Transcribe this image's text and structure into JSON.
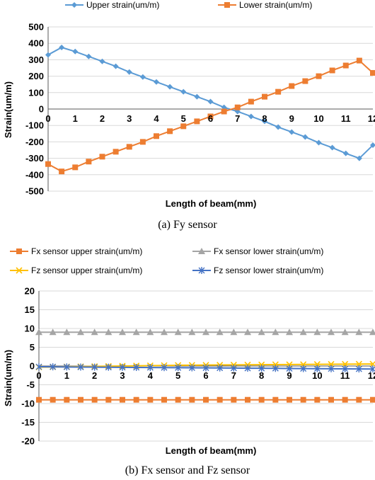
{
  "chart_data": [
    {
      "type": "line",
      "caption": "(a) Fy sensor",
      "xlabel": "Length of beam(mm)",
      "ylabel": "Strain(um/m)",
      "ylim": [
        -500,
        500
      ],
      "yticks": [
        -500,
        -400,
        -300,
        -200,
        -100,
        0,
        100,
        200,
        300,
        400,
        500
      ],
      "xlim": [
        0,
        12
      ],
      "xticks": [
        0,
        1,
        2,
        3,
        4,
        5,
        6,
        7,
        8,
        9,
        10,
        11,
        12
      ],
      "grid": true,
      "legend_position": "top",
      "x": [
        0,
        0.5,
        1,
        1.5,
        2,
        2.5,
        3,
        3.5,
        4,
        4.5,
        5,
        5.5,
        6,
        6.5,
        7,
        7.5,
        8,
        8.5,
        9,
        9.5,
        10,
        10.5,
        11,
        11.5,
        12
      ],
      "series": [
        {
          "name": "Upper strain(um/m)",
          "color": "#5B9BD5",
          "marker": "diamond",
          "values": [
            330,
            375,
            350,
            320,
            290,
            260,
            225,
            195,
            165,
            135,
            105,
            75,
            45,
            10,
            -15,
            -45,
            -75,
            -110,
            -140,
            -170,
            -205,
            -235,
            -270,
            -300,
            -220
          ]
        },
        {
          "name": "Lower strain(um/m)",
          "color": "#ED7D31",
          "marker": "square",
          "values": [
            -335,
            -380,
            -355,
            -320,
            -290,
            -260,
            -230,
            -200,
            -165,
            -135,
            -105,
            -75,
            -45,
            -15,
            10,
            45,
            75,
            105,
            140,
            170,
            200,
            235,
            265,
            295,
            220
          ]
        }
      ]
    },
    {
      "type": "line",
      "caption": "(b) Fx sensor and Fz sensor",
      "xlabel": "Length of beam(mm)",
      "ylabel": "Strain(um/m)",
      "ylim": [
        -20,
        20
      ],
      "yticks": [
        -20,
        -15,
        -10,
        -5,
        0,
        5,
        10,
        15,
        20
      ],
      "xlim": [
        0,
        12
      ],
      "xticks": [
        0,
        1,
        2,
        3,
        4,
        5,
        6,
        7,
        8,
        9,
        10,
        11,
        12
      ],
      "grid": true,
      "legend_position": "top",
      "x": [
        0,
        0.5,
        1,
        1.5,
        2,
        2.5,
        3,
        3.5,
        4,
        4.5,
        5,
        5.5,
        6,
        6.5,
        7,
        7.5,
        8,
        8.5,
        9,
        9.5,
        10,
        10.5,
        11,
        11.5,
        12
      ],
      "series": [
        {
          "name": "Fx sensor upper strain(um/m)",
          "color": "#ED7D31",
          "marker": "square",
          "values": [
            -9,
            -9,
            -9,
            -9,
            -9,
            -9,
            -9,
            -9,
            -9,
            -9,
            -9,
            -9,
            -9,
            -9,
            -9,
            -9,
            -9,
            -9,
            -9,
            -9,
            -9,
            -9,
            -9,
            -9,
            -9
          ]
        },
        {
          "name": "Fx sensor lower strain(um/m)",
          "color": "#A5A5A5",
          "marker": "triangle",
          "values": [
            9,
            9,
            9,
            9,
            9,
            9,
            9,
            9,
            9,
            9,
            9,
            9,
            9,
            9,
            9,
            9,
            9,
            9,
            9,
            9,
            9,
            9,
            9,
            9,
            9
          ]
        },
        {
          "name": "Fz sensor upper strain(um/m)",
          "color": "#FFC000",
          "marker": "x",
          "values": [
            -0.3,
            -0.25,
            -0.2,
            -0.15,
            -0.1,
            -0.05,
            0,
            0.05,
            0.1,
            0.15,
            0.2,
            0.22,
            0.25,
            0.28,
            0.3,
            0.32,
            0.35,
            0.38,
            0.4,
            0.42,
            0.45,
            0.48,
            0.5,
            0.52,
            0.55
          ]
        },
        {
          "name": "Fz sensor lower strain(um/m)",
          "color": "#4472C4",
          "marker": "star",
          "values": [
            -0.2,
            -0.22,
            -0.25,
            -0.28,
            -0.3,
            -0.32,
            -0.35,
            -0.38,
            -0.4,
            -0.42,
            -0.45,
            -0.48,
            -0.5,
            -0.52,
            -0.55,
            -0.58,
            -0.6,
            -0.62,
            -0.65,
            -0.68,
            -0.7,
            -0.72,
            -0.75,
            -0.78,
            -0.8
          ]
        }
      ]
    }
  ]
}
